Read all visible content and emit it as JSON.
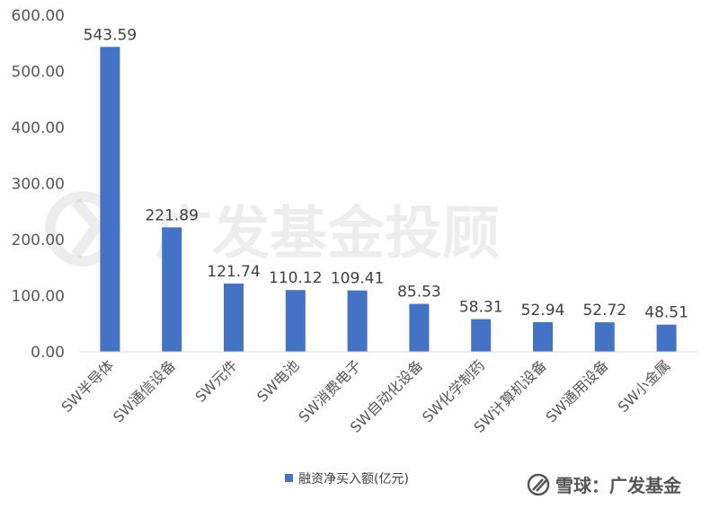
{
  "chart_data": {
    "type": "bar",
    "categories": [
      "SW半导体",
      "SW通信设备",
      "SW元件",
      "SW电池",
      "SW消费电子",
      "SW自动化设备",
      "SW化学制药",
      "SW计算机设备",
      "SW通用设备",
      "SW小金属"
    ],
    "series": [
      {
        "name": "融资净买入额(亿元)",
        "values": [
          543.59,
          221.89,
          121.74,
          110.12,
          109.41,
          85.53,
          58.31,
          52.94,
          52.72,
          48.51
        ],
        "labels": [
          "543.59",
          "221.89",
          "121.74",
          "110.12",
          "109.41",
          "85.53",
          "58.31",
          "52.94",
          "52.72",
          "48.51"
        ],
        "color": "#4472C4"
      }
    ],
    "yticks": [
      "0.00",
      "100.00",
      "200.00",
      "300.00",
      "400.00",
      "500.00",
      "600.00"
    ],
    "ylim": [
      0,
      600
    ],
    "grid": false,
    "legend_position": "bottom"
  },
  "watermark": {
    "text": "广发基金投顾"
  },
  "footer": {
    "source_text": "雪球：广发基金"
  }
}
